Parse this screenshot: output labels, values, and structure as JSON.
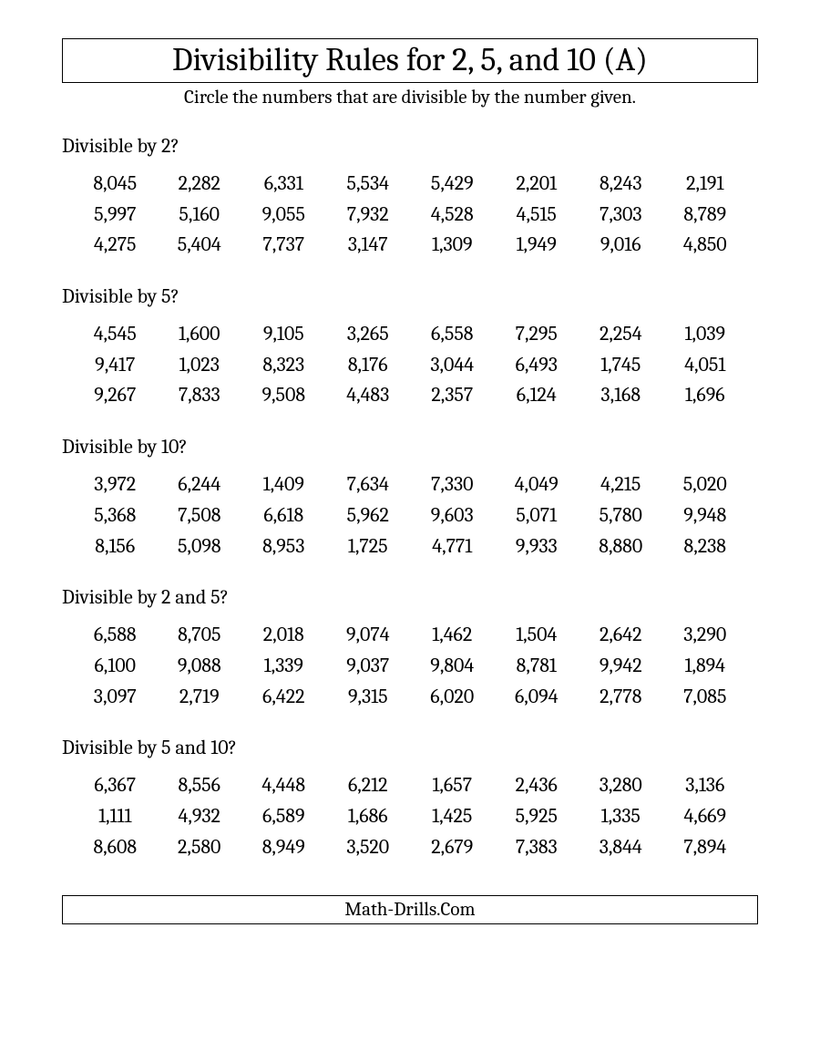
{
  "title": "Divisibility Rules for 2, 5, and 10 (A)",
  "instructions": "Circle the numbers that are divisible by the number given.",
  "footer": "Math-Drills.Com",
  "style": {
    "background_color": "#ffffff",
    "text_color": "#000000",
    "border_color": "#000000",
    "title_fontsize": 36,
    "instructions_fontsize": 21,
    "heading_fontsize": 22,
    "number_fontsize": 22,
    "columns": 8,
    "rows_per_section": 3,
    "font_family": "Cambria, Georgia, 'Times New Roman', serif"
  },
  "sections": [
    {
      "heading": "Divisible by 2?",
      "numbers": [
        "8,045",
        "2,282",
        "6,331",
        "5,534",
        "5,429",
        "2,201",
        "8,243",
        "2,191",
        "5,997",
        "5,160",
        "9,055",
        "7,932",
        "4,528",
        "4,515",
        "7,303",
        "8,789",
        "4,275",
        "5,404",
        "7,737",
        "3,147",
        "1,309",
        "1,949",
        "9,016",
        "4,850"
      ]
    },
    {
      "heading": "Divisible by 5?",
      "numbers": [
        "4,545",
        "1,600",
        "9,105",
        "3,265",
        "6,558",
        "7,295",
        "2,254",
        "1,039",
        "9,417",
        "1,023",
        "8,323",
        "8,176",
        "3,044",
        "6,493",
        "1,745",
        "4,051",
        "9,267",
        "7,833",
        "9,508",
        "4,483",
        "2,357",
        "6,124",
        "3,168",
        "1,696"
      ]
    },
    {
      "heading": "Divisible by 10?",
      "numbers": [
        "3,972",
        "6,244",
        "1,409",
        "7,634",
        "7,330",
        "4,049",
        "4,215",
        "5,020",
        "5,368",
        "7,508",
        "6,618",
        "5,962",
        "9,603",
        "5,071",
        "5,780",
        "9,948",
        "8,156",
        "5,098",
        "8,953",
        "1,725",
        "4,771",
        "9,933",
        "8,880",
        "8,238"
      ]
    },
    {
      "heading": "Divisible by 2 and 5?",
      "numbers": [
        "6,588",
        "8,705",
        "2,018",
        "9,074",
        "1,462",
        "1,504",
        "2,642",
        "3,290",
        "6,100",
        "9,088",
        "1,339",
        "9,037",
        "9,804",
        "8,781",
        "9,942",
        "1,894",
        "3,097",
        "2,719",
        "6,422",
        "9,315",
        "6,020",
        "6,094",
        "2,778",
        "7,085"
      ]
    },
    {
      "heading": "Divisible by 5 and 10?",
      "numbers": [
        "6,367",
        "8,556",
        "4,448",
        "6,212",
        "1,657",
        "2,436",
        "3,280",
        "3,136",
        "1,111",
        "4,932",
        "6,589",
        "1,686",
        "1,425",
        "5,925",
        "1,335",
        "4,669",
        "8,608",
        "2,580",
        "8,949",
        "3,520",
        "2,679",
        "7,383",
        "3,844",
        "7,894"
      ]
    }
  ]
}
